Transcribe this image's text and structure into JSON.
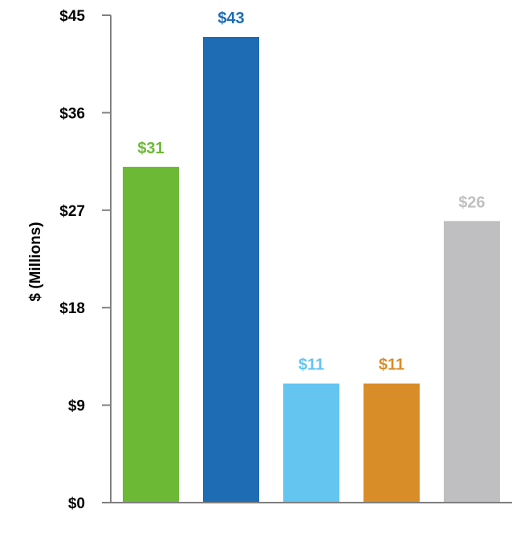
{
  "chart_data": {
    "type": "bar",
    "title": "",
    "xlabel": "",
    "ylabel": "$ (Millions)",
    "ylim": [
      0,
      45
    ],
    "yticks": [
      0,
      9,
      18,
      27,
      36,
      45
    ],
    "ytick_labels": [
      "$0",
      "$9",
      "$18",
      "$27",
      "$36",
      "$45"
    ],
    "categories": [
      "",
      "",
      "",
      "",
      ""
    ],
    "values": [
      31,
      43,
      11,
      11,
      26
    ],
    "value_labels": [
      "$31",
      "$43",
      "$11",
      "$11",
      "$26"
    ],
    "colors": [
      "#6cb936",
      "#1e6cb4",
      "#63c5f0",
      "#d98d29",
      "#bfbfc1"
    ],
    "grid": false,
    "legend": "none"
  }
}
